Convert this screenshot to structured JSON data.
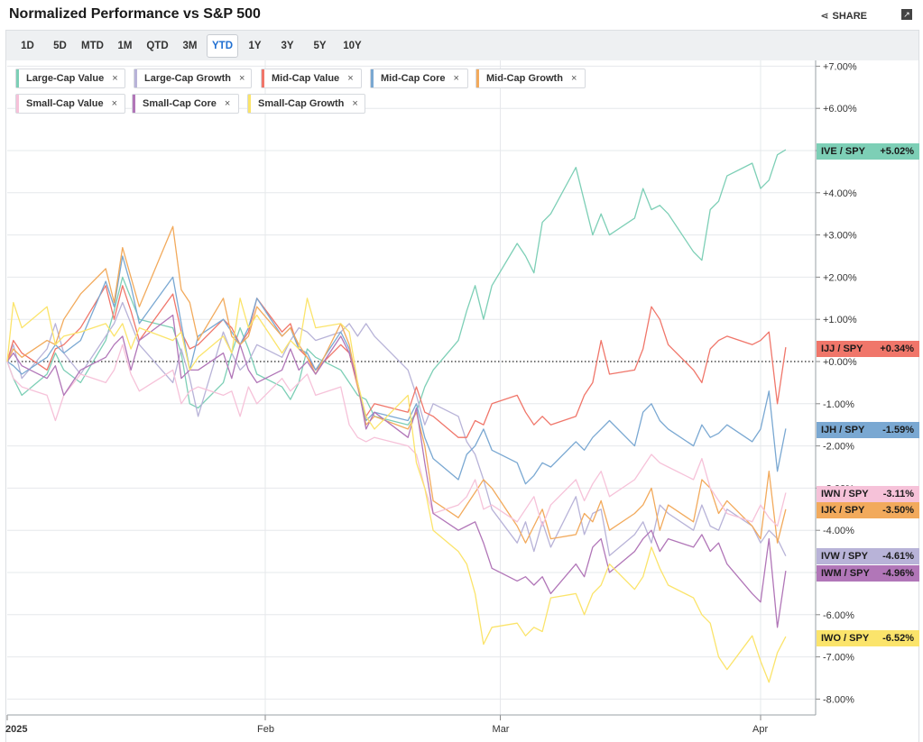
{
  "header": {
    "title": "Normalized Performance vs S&P 500",
    "share_label": "SHARE",
    "share_icon": "share-icon",
    "expand_icon": "expand-icon"
  },
  "ranges": [
    "1D",
    "5D",
    "MTD",
    "1M",
    "QTD",
    "3M",
    "YTD",
    "1Y",
    "3Y",
    "5Y",
    "10Y"
  ],
  "active_range": "YTD",
  "chips": [
    {
      "label": "Large-Cap Value",
      "color": "#7dcfb6"
    },
    {
      "label": "Large-Cap Growth",
      "color": "#b8b3d8"
    },
    {
      "label": "Mid-Cap Value",
      "color": "#f0766a"
    },
    {
      "label": "Mid-Cap Core",
      "color": "#7aa8d2"
    },
    {
      "label": "Mid-Cap Growth",
      "color": "#f2aa5c"
    },
    {
      "label": "Small-Cap Value",
      "color": "#f6c2d9"
    },
    {
      "label": "Small-Cap Core",
      "color": "#b176b8"
    },
    {
      "label": "Small-Cap Growth",
      "color": "#fbe46b"
    }
  ],
  "chip_close_glyph": "×",
  "chart_data": {
    "type": "line",
    "y_unit": "%",
    "ylim": [
      -8.4,
      7.2
    ],
    "y_ticks": [
      "+7.00%",
      "+6.00%",
      "+5.00%",
      "+4.00%",
      "+3.00%",
      "+2.00%",
      "+1.00%",
      "+0.00%",
      "-1.00%",
      "-2.00%",
      "-3.00%",
      "-4.00%",
      "-5.00%",
      "-6.00%",
      "-7.00%",
      "-8.00%"
    ],
    "y_tick_values": [
      7,
      6,
      5,
      4,
      3,
      2,
      1,
      0,
      -1,
      -2,
      -3,
      -4,
      -5,
      -6,
      -7,
      -8
    ],
    "x_ticks": [
      {
        "label": "2025",
        "date": "2024-12-31"
      },
      {
        "label": "Feb",
        "date": "2025-02-01"
      },
      {
        "label": "Mar",
        "date": "2025-03-01"
      },
      {
        "label": "Apr",
        "date": "2025-04-01"
      }
    ],
    "xlim": [
      "2024-12-31",
      "2025-04-04"
    ],
    "zero_line": "dotted",
    "dates": [
      "2024-12-31",
      "2025-01-02",
      "2025-01-03",
      "2025-01-06",
      "2025-01-07",
      "2025-01-08",
      "2025-01-10",
      "2025-01-13",
      "2025-01-14",
      "2025-01-15",
      "2025-01-16",
      "2025-01-17",
      "2025-01-21",
      "2025-01-22",
      "2025-01-23",
      "2025-01-24",
      "2025-01-27",
      "2025-01-28",
      "2025-01-29",
      "2025-01-30",
      "2025-01-31",
      "2025-02-03",
      "2025-02-04",
      "2025-02-05",
      "2025-02-06",
      "2025-02-07",
      "2025-02-10",
      "2025-02-11",
      "2025-02-12",
      "2025-02-13",
      "2025-02-14",
      "2025-02-18",
      "2025-02-19",
      "2025-02-20",
      "2025-02-21",
      "2025-02-24",
      "2025-02-25",
      "2025-02-26",
      "2025-02-27",
      "2025-02-28",
      "2025-03-03",
      "2025-03-04",
      "2025-03-05",
      "2025-03-06",
      "2025-03-07",
      "2025-03-10",
      "2025-03-11",
      "2025-03-12",
      "2025-03-13",
      "2025-03-14",
      "2025-03-17",
      "2025-03-18",
      "2025-03-19",
      "2025-03-20",
      "2025-03-21",
      "2025-03-24",
      "2025-03-25",
      "2025-03-26",
      "2025-03-27",
      "2025-03-28",
      "2025-03-31",
      "2025-04-01",
      "2025-04-02",
      "2025-04-03",
      "2025-04-04"
    ],
    "series": [
      {
        "name": "IVE / SPY",
        "tag": "IVE / SPY",
        "value_label": "+5.02%",
        "color": "#7dcfb6",
        "tag_color": "#7dcfb6",
        "values": [
          0.0,
          -0.4,
          -0.8,
          -0.3,
          0.2,
          -0.2,
          -0.5,
          0.5,
          1.2,
          2.0,
          1.5,
          1.0,
          0.8,
          0.2,
          -1.0,
          -1.1,
          -0.5,
          0.2,
          0.8,
          0.3,
          -0.3,
          -0.6,
          -0.9,
          -0.5,
          0.3,
          0.1,
          -0.2,
          -0.5,
          -0.8,
          -0.9,
          -1.3,
          -1.5,
          -1.2,
          -0.6,
          -0.2,
          0.5,
          1.2,
          1.8,
          1.0,
          1.8,
          2.8,
          2.5,
          2.1,
          3.3,
          3.5,
          4.6,
          3.8,
          3.0,
          3.5,
          3.0,
          3.4,
          4.1,
          3.6,
          3.7,
          3.5,
          2.6,
          2.4,
          3.6,
          3.8,
          4.4,
          4.7,
          4.1,
          4.3,
          4.9,
          5.02
        ]
      },
      {
        "name": "IVW / SPY",
        "tag": "IVW / SPY",
        "value_label": "-4.61%",
        "color": "#b8b3d8",
        "tag_color": "#b8b3d8",
        "values": [
          0.0,
          0.4,
          -0.4,
          0.3,
          0.9,
          0.2,
          -0.3,
          0.6,
          0.9,
          1.4,
          0.9,
          0.4,
          -0.5,
          0.3,
          -0.4,
          -1.3,
          0.7,
          0.2,
          -0.2,
          0.0,
          0.4,
          0.1,
          0.5,
          0.8,
          0.7,
          0.5,
          0.7,
          0.9,
          0.6,
          0.9,
          0.6,
          -0.2,
          -0.8,
          -1.5,
          -1.0,
          -1.3,
          -1.9,
          -2.2,
          -2.8,
          -3.5,
          -4.3,
          -3.8,
          -4.5,
          -3.8,
          -4.4,
          -3.2,
          -4.1,
          -3.6,
          -3.5,
          -4.6,
          -4.1,
          -3.8,
          -4.3,
          -3.4,
          -3.6,
          -4.0,
          -3.4,
          -3.9,
          -4.0,
          -3.5,
          -3.9,
          -4.3,
          -4.0,
          -4.2,
          -4.61
        ]
      },
      {
        "name": "IJJ / SPY",
        "tag": "IJJ / SPY",
        "value_label": "+0.34%",
        "color": "#f0766a",
        "tag_color": "#f0766a",
        "values": [
          0.0,
          0.5,
          0.2,
          -0.2,
          0.3,
          0.4,
          0.8,
          1.8,
          1.0,
          1.8,
          1.2,
          0.5,
          1.6,
          0.7,
          0.3,
          0.4,
          1.0,
          0.8,
          0.4,
          0.7,
          1.5,
          0.7,
          0.9,
          0.3,
          0.1,
          -0.2,
          0.4,
          0.2,
          -0.6,
          -1.3,
          -1.0,
          -1.2,
          -0.6,
          -1.2,
          -1.3,
          -1.8,
          -1.8,
          -1.4,
          -1.5,
          -1.0,
          -0.8,
          -1.2,
          -1.5,
          -1.3,
          -1.5,
          -1.3,
          -0.8,
          -0.5,
          0.5,
          -0.3,
          -0.2,
          0.3,
          1.3,
          1.0,
          0.4,
          -0.2,
          -0.5,
          0.3,
          0.5,
          0.6,
          0.4,
          0.5,
          0.7,
          -1.0,
          0.34
        ]
      },
      {
        "name": "IJH / SPY",
        "tag": "IJH / SPY",
        "value_label": "-1.59%",
        "color": "#7aa8d2",
        "tag_color": "#7aa8d2",
        "values": [
          0.0,
          -0.1,
          -0.3,
          0.1,
          0.4,
          0.2,
          0.5,
          1.9,
          1.3,
          2.5,
          1.8,
          0.9,
          2.0,
          0.9,
          -0.2,
          0.6,
          1.0,
          0.7,
          0.4,
          0.8,
          1.5,
          0.6,
          0.8,
          0.3,
          0.2,
          -0.2,
          0.7,
          0.3,
          -0.5,
          -1.4,
          -1.2,
          -1.4,
          -1.0,
          -1.8,
          -2.3,
          -2.8,
          -2.2,
          -2.0,
          -1.6,
          -2.1,
          -2.4,
          -2.9,
          -2.7,
          -2.4,
          -2.5,
          -1.9,
          -2.1,
          -1.8,
          -1.6,
          -1.4,
          -2.0,
          -1.2,
          -1.0,
          -1.4,
          -1.6,
          -2.0,
          -1.5,
          -1.8,
          -1.7,
          -1.5,
          -1.9,
          -1.6,
          -0.7,
          -2.6,
          -1.59
        ]
      },
      {
        "name": "IJK / SPY",
        "tag": "IJK / SPY",
        "value_label": "-3.50%",
        "color": "#f2aa5c",
        "tag_color": "#f2aa5c",
        "values": [
          0.0,
          0.3,
          0.1,
          0.5,
          0.4,
          1.0,
          1.6,
          2.2,
          1.4,
          2.7,
          2.0,
          1.3,
          3.2,
          1.7,
          1.4,
          0.5,
          1.5,
          0.6,
          0.4,
          0.6,
          1.3,
          0.6,
          0.8,
          0.4,
          0.1,
          -0.3,
          0.9,
          0.4,
          -0.6,
          -1.5,
          -1.3,
          -1.6,
          -1.2,
          -2.0,
          -3.3,
          -3.7,
          -3.4,
          -3.1,
          -2.8,
          -3.0,
          -3.9,
          -4.3,
          -3.9,
          -3.5,
          -4.2,
          -4.1,
          -3.6,
          -3.8,
          -3.3,
          -4.0,
          -3.6,
          -3.4,
          -3.0,
          -4.0,
          -3.4,
          -3.8,
          -2.8,
          -3.0,
          -3.6,
          -3.3,
          -3.9,
          -4.2,
          -2.6,
          -4.3,
          -3.5
        ]
      },
      {
        "name": "IWN / SPY",
        "tag": "IWN / SPY",
        "value_label": "-3.11%",
        "color": "#f6c2d9",
        "tag_color": "#f6c2d9",
        "values": [
          0.0,
          -0.4,
          -0.6,
          -0.8,
          -1.4,
          -0.8,
          -0.3,
          -0.5,
          -0.2,
          0.4,
          -0.3,
          -0.7,
          -0.2,
          -1.0,
          -0.7,
          -0.6,
          -0.8,
          -0.7,
          -1.3,
          -0.6,
          -1.0,
          -0.4,
          -0.7,
          -0.5,
          -0.3,
          -0.8,
          -0.6,
          -1.5,
          -1.8,
          -1.9,
          -1.8,
          -2.0,
          -2.2,
          -3.0,
          -3.6,
          -3.4,
          -3.2,
          -2.8,
          -3.5,
          -3.4,
          -3.8,
          -3.5,
          -3.2,
          -3.9,
          -3.4,
          -2.8,
          -3.3,
          -2.9,
          -2.6,
          -3.2,
          -2.8,
          -2.5,
          -2.2,
          -2.4,
          -2.5,
          -2.8,
          -2.3,
          -3.0,
          -3.3,
          -3.6,
          -3.8,
          -3.4,
          -3.7,
          -3.9,
          -3.11
        ]
      },
      {
        "name": "IWM / SPY",
        "tag": "IWM / SPY",
        "value_label": "-4.96%",
        "color": "#b176b8",
        "tag_color": "#b176b8",
        "values": [
          0.0,
          0.2,
          -0.1,
          -0.4,
          -0.1,
          -0.8,
          -0.2,
          0.1,
          0.4,
          0.6,
          -0.2,
          0.5,
          1.1,
          -0.4,
          -0.2,
          -0.2,
          0.2,
          -0.4,
          0.4,
          -0.2,
          -0.5,
          -0.2,
          0.3,
          -0.2,
          0.0,
          -0.3,
          0.6,
          0.2,
          -0.5,
          -1.6,
          -1.2,
          -1.8,
          -1.1,
          -2.4,
          -3.6,
          -4.0,
          -3.9,
          -3.8,
          -4.3,
          -4.9,
          -5.2,
          -5.1,
          -5.3,
          -5.1,
          -5.5,
          -4.8,
          -5.1,
          -4.4,
          -4.2,
          -5.0,
          -4.5,
          -4.2,
          -4.0,
          -4.5,
          -4.2,
          -4.4,
          -4.1,
          -4.5,
          -4.3,
          -4.8,
          -5.5,
          -5.7,
          -4.2,
          -6.3,
          -4.96
        ]
      },
      {
        "name": "IWO / SPY",
        "tag": "IWO / SPY",
        "value_label": "-6.52%",
        "color": "#fbe46b",
        "tag_color": "#fbe46b",
        "values": [
          0.0,
          1.4,
          0.8,
          1.3,
          0.4,
          0.6,
          0.7,
          0.9,
          0.6,
          0.9,
          0.3,
          0.8,
          0.5,
          0.7,
          -0.2,
          0.1,
          0.6,
          0.2,
          1.5,
          0.8,
          1.1,
          0.2,
          0.5,
          0.3,
          1.5,
          0.8,
          0.9,
          0.7,
          -0.5,
          -1.3,
          -1.6,
          -0.8,
          -2.4,
          -3.0,
          -4.0,
          -4.5,
          -4.8,
          -5.5,
          -6.7,
          -6.3,
          -6.2,
          -6.5,
          -6.3,
          -6.4,
          -5.6,
          -5.5,
          -6.0,
          -5.5,
          -5.3,
          -4.8,
          -5.4,
          -5.1,
          -4.4,
          -4.9,
          -5.3,
          -5.6,
          -6.0,
          -6.2,
          -7.0,
          -7.3,
          -6.5,
          -7.1,
          -7.6,
          -6.9,
          -6.52
        ]
      }
    ]
  }
}
